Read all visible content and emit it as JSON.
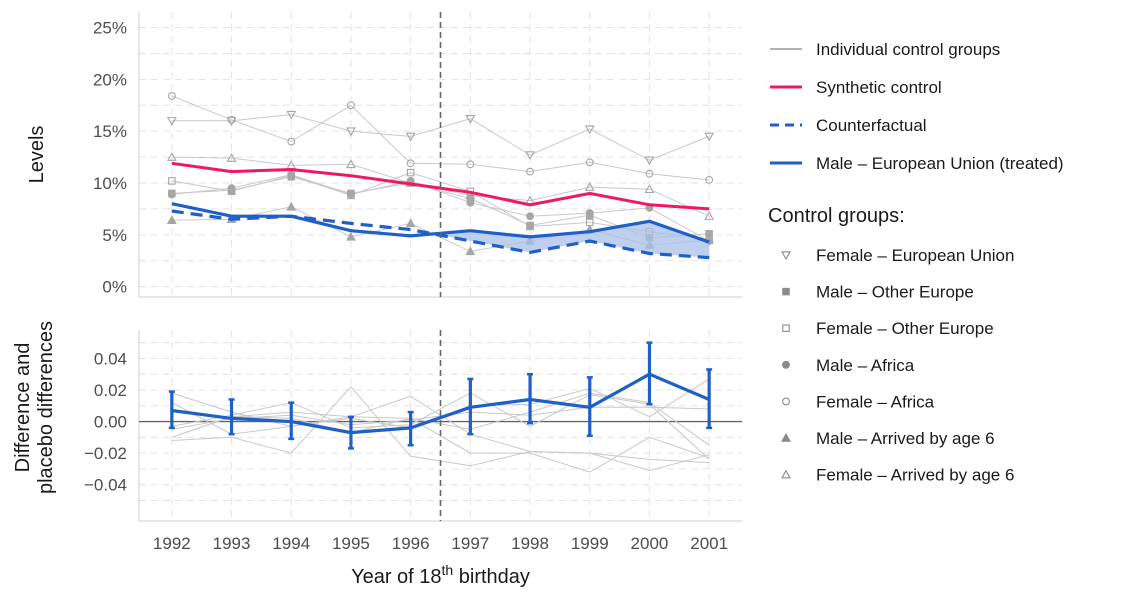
{
  "chart_data": {
    "type": "line",
    "x": [
      1992,
      1993,
      1994,
      1995,
      1996,
      1997,
      1998,
      1999,
      2000,
      2001
    ],
    "x_ticks": [
      "1992",
      "1993",
      "1994",
      "1995",
      "1996",
      "1997",
      "1998",
      "1999",
      "2000",
      "2001"
    ],
    "xlabel_prefix": "Year of 18",
    "xlabel_sup": "th",
    "xlabel_suffix": " birthday",
    "treatment_line_x": 1996.5,
    "grid": true,
    "legend_position": "right",
    "panels": {
      "levels": {
        "ylabel": "Levels",
        "ylim": [
          -0.01,
          0.265
        ],
        "yticks": [
          0,
          0.05,
          0.1,
          0.15,
          0.2,
          0.25
        ],
        "ytick_labels": [
          "0%",
          "5%",
          "10%",
          "15%",
          "20%",
          "25%"
        ],
        "series": [
          {
            "name": "Female – European Union",
            "role": "control",
            "marker": "triangle-down-open",
            "values": [
              0.16,
              0.16,
              0.166,
              0.15,
              0.145,
              0.162,
              0.127,
              0.152,
              0.122,
              0.145
            ]
          },
          {
            "name": "Male – Other Europe",
            "role": "control",
            "marker": "square-filled",
            "values": [
              0.09,
              0.093,
              0.106,
              0.09,
              0.1,
              0.085,
              0.059,
              0.069,
              0.047,
              0.051
            ]
          },
          {
            "name": "Female – Other Europe",
            "role": "control",
            "marker": "square-open",
            "values": [
              0.102,
              0.092,
              0.107,
              0.088,
              0.11,
              0.092,
              0.058,
              0.062,
              0.053,
              0.046
            ]
          },
          {
            "name": "Male – Africa",
            "role": "control",
            "marker": "circle-filled",
            "values": [
              0.089,
              0.095,
              0.108,
              0.089,
              0.102,
              0.081,
              0.068,
              0.071,
              0.076,
              0.044
            ]
          },
          {
            "name": "Female – Africa",
            "role": "control",
            "marker": "circle-open",
            "values": [
              0.184,
              0.161,
              0.14,
              0.175,
              0.119,
              0.118,
              0.111,
              0.12,
              0.109,
              0.103
            ]
          },
          {
            "name": "Male – Arrived by age 6",
            "role": "control",
            "marker": "triangle-up-filled",
            "values": [
              0.064,
              0.065,
              0.077,
              0.048,
              0.061,
              0.034,
              0.044,
              0.055,
              0.04,
              0.045
            ]
          },
          {
            "name": "Female – Arrived by age 6",
            "role": "control",
            "marker": "triangle-up-open",
            "values": [
              0.125,
              0.124,
              0.117,
              0.118,
              0.1,
              0.088,
              0.083,
              0.096,
              0.094,
              0.068
            ]
          },
          {
            "name": "Synthetic control",
            "role": "synthetic",
            "values": [
              0.119,
              0.111,
              0.113,
              0.107,
              0.099,
              0.091,
              0.079,
              0.09,
              0.079,
              0.075
            ]
          },
          {
            "name": "Counterfactual",
            "role": "counterfactual",
            "values": [
              0.073,
              0.065,
              0.068,
              0.061,
              0.055,
              0.044,
              0.033,
              0.044,
              0.032,
              0.028
            ]
          },
          {
            "name": "Male – European Union (treated)",
            "role": "treated",
            "values": [
              0.08,
              0.068,
              0.068,
              0.054,
              0.049,
              0.054,
              0.048,
              0.053,
              0.063,
              0.043
            ]
          }
        ]
      },
      "differences": {
        "ylabel_line1": "Difference and",
        "ylabel_line2": "placebo differences",
        "ylim": [
          -0.063,
          0.058
        ],
        "yticks": [
          -0.04,
          -0.02,
          0.0,
          0.02,
          0.04
        ],
        "ytick_labels": [
          "−0.04",
          "−0.02",
          "0.00",
          "0.02",
          "0.04"
        ],
        "zero_line": true,
        "placebo_series": [
          {
            "name": "Female – European Union",
            "values": [
              -0.01,
              0.003,
              0.002,
              -0.007,
              0.002,
              -0.02,
              -0.02,
              -0.032,
              -0.01,
              -0.023
            ]
          },
          {
            "name": "Male – Other Europe",
            "values": [
              -0.003,
              0.004,
              0.012,
              -0.004,
              -0.002,
              0.018,
              -0.003,
              0.017,
              0.011,
              -0.024
            ]
          },
          {
            "name": "Female – Other Europe",
            "values": [
              0.012,
              -0.008,
              -0.003,
              0.003,
              0.016,
              -0.008,
              -0.019,
              -0.02,
              -0.024,
              -0.026
            ]
          },
          {
            "name": "Male – Africa",
            "values": [
              -0.005,
              0.002,
              0.004,
              -0.002,
              0.001,
              0.006,
              0.004,
              0.009,
              0.009,
              0.008
            ]
          },
          {
            "name": "Female – Africa",
            "values": [
              -0.012,
              -0.01,
              -0.02,
              0.022,
              -0.022,
              -0.028,
              -0.019,
              -0.02,
              -0.031,
              -0.021
            ]
          },
          {
            "name": "Male – Arrived by age 6",
            "values": [
              0.018,
              0.006,
              -0.003,
              0.002,
              -0.004,
              0.01,
              0.011,
              0.021,
              0.003,
              0.027
            ]
          },
          {
            "name": "Female – Arrived by age 6",
            "values": [
              -0.01,
              0.003,
              0.006,
              0.003,
              0.002,
              -0.005,
              0.006,
              0.018,
              0.012,
              -0.015
            ]
          }
        ],
        "treated": {
          "name": "Male – European Union (treated)",
          "values": [
            0.007,
            0.002,
            0.0,
            -0.007,
            -0.004,
            0.009,
            0.014,
            0.009,
            0.03,
            0.014
          ],
          "ci_low": [
            -0.004,
            -0.008,
            -0.011,
            -0.017,
            -0.015,
            -0.008,
            -0.001,
            -0.009,
            0.011,
            -0.004
          ],
          "ci_high": [
            0.019,
            0.014,
            0.012,
            0.003,
            0.006,
            0.027,
            0.03,
            0.028,
            0.05,
            0.033
          ]
        }
      }
    },
    "legend": {
      "lines": [
        {
          "label": "Individual control groups",
          "style": "thin-grey"
        },
        {
          "label": "Synthetic control",
          "style": "pink-solid"
        },
        {
          "label": "Counterfactual",
          "style": "blue-dashed"
        },
        {
          "label": "Male – European Union (treated)",
          "style": "blue-solid"
        }
      ],
      "groups_title": "Control groups:",
      "groups": [
        {
          "label": "Female – European Union",
          "marker": "triangle-down-open"
        },
        {
          "label": "Male – Other Europe",
          "marker": "square-filled"
        },
        {
          "label": "Female – Other Europe",
          "marker": "square-open"
        },
        {
          "label": "Male – Africa",
          "marker": "circle-filled"
        },
        {
          "label": "Female – Africa",
          "marker": "circle-open"
        },
        {
          "label": "Male – Arrived by age 6",
          "marker": "triangle-up-filled"
        },
        {
          "label": "Female – Arrived by age 6",
          "marker": "triangle-up-open"
        }
      ]
    },
    "colors": {
      "control": "#c8c8c8",
      "marker": "#a6a6a6",
      "synthetic": "#f0195f",
      "treated": "#1f5fc8",
      "gap_fill": "#a9c0e8",
      "grid": "#e3e3e3",
      "vline": "#666666",
      "zero": "#666666"
    }
  }
}
